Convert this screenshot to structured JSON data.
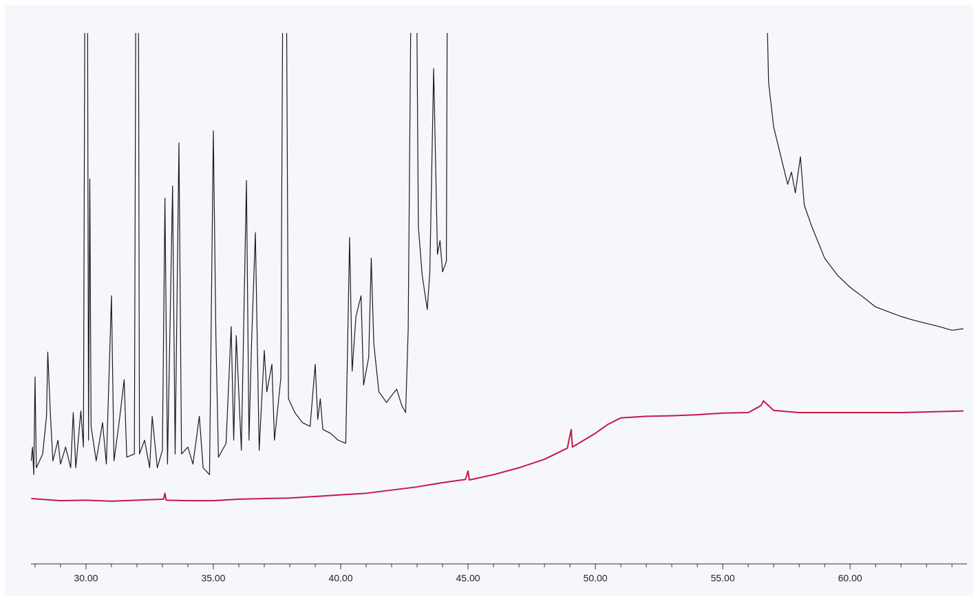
{
  "chart_data": {
    "type": "line",
    "xlim": [
      27.84,
      64.59
    ],
    "ylim": [
      0,
      100
    ],
    "xticks": [
      {
        "value": 30,
        "label": "30.00"
      },
      {
        "value": 35,
        "label": "35.00"
      },
      {
        "value": 40,
        "label": "40.00"
      },
      {
        "value": 45,
        "label": "45.00"
      },
      {
        "value": 50,
        "label": "50.00"
      },
      {
        "value": 55,
        "label": "55.00"
      },
      {
        "value": 60,
        "label": "60.00"
      }
    ],
    "xminorticks": [
      28,
      29,
      31,
      32,
      33,
      34,
      36,
      37,
      38,
      39,
      41,
      42,
      43,
      44,
      46,
      47,
      48,
      49,
      51,
      52,
      53,
      54,
      56,
      57,
      58,
      59,
      61,
      62,
      63,
      64
    ],
    "series": [
      {
        "color": "#1a1a1a",
        "x": [
          27.85,
          27.9,
          27.95,
          28.0,
          28.05,
          28.3,
          28.45,
          28.5,
          28.6,
          28.7,
          28.9,
          29.0,
          29.2,
          29.4,
          29.5,
          29.6,
          29.8,
          29.9,
          29.97,
          30.05,
          30.1,
          30.15,
          30.2,
          30.4,
          30.65,
          30.8,
          31.0,
          31.1,
          31.3,
          31.5,
          31.6,
          31.9,
          31.97,
          32.05,
          32.1,
          32.3,
          32.5,
          32.6,
          32.8,
          33.0,
          33.1,
          33.2,
          33.4,
          33.5,
          33.65,
          33.75,
          34.0,
          34.2,
          34.45,
          34.6,
          34.85,
          35.0,
          35.1,
          35.2,
          35.5,
          35.7,
          35.8,
          35.9,
          36.1,
          36.3,
          36.4,
          36.5,
          36.65,
          36.8,
          37.0,
          37.1,
          37.3,
          37.4,
          37.65,
          37.75,
          37.85,
          37.95,
          38.2,
          38.5,
          38.8,
          39.0,
          39.1,
          39.2,
          39.3,
          39.6,
          39.9,
          40.2,
          40.35,
          40.45,
          40.6,
          40.8,
          40.9,
          41.1,
          41.2,
          41.3,
          41.5,
          41.8,
          42.0,
          42.2,
          42.4,
          42.55,
          42.65,
          42.8,
          42.95,
          43.05,
          43.2,
          43.4,
          43.5,
          43.65,
          43.8,
          43.9,
          44.0,
          44.15,
          44.2,
          null,
          56.62,
          56.8,
          57.0,
          57.3,
          57.55,
          57.7,
          57.85,
          58.05,
          58.2,
          58.5,
          59.0,
          59.5,
          60.0,
          60.5,
          61.0,
          61.5,
          62.0,
          62.5,
          63.0,
          63.5,
          64.0,
          64.45
        ],
        "values": [
          19.4,
          22.0,
          16.8,
          35.2,
          18.1,
          20.7,
          27.8,
          39.9,
          28.5,
          19.4,
          23.3,
          18.8,
          22.0,
          18.1,
          28.5,
          18.1,
          28.8,
          22.0,
          130,
          130,
          23.3,
          72.5,
          25.9,
          19.4,
          26.6,
          18.8,
          50.5,
          19.4,
          26.6,
          34.7,
          20.1,
          20.7,
          130,
          130,
          20.7,
          23.3,
          18.1,
          27.8,
          18.1,
          21.4,
          68.9,
          18.8,
          71.2,
          20.7,
          79.3,
          20.7,
          22.0,
          18.8,
          27.8,
          18.1,
          16.8,
          81.6,
          43.0,
          20.1,
          22.7,
          44.7,
          23.3,
          43.0,
          21.4,
          72.2,
          23.3,
          41.5,
          62.4,
          21.4,
          40.2,
          32.4,
          37.6,
          23.3,
          35.0,
          130,
          130,
          31.1,
          28.5,
          26.6,
          25.9,
          37.6,
          27.2,
          31.1,
          25.3,
          24.6,
          23.3,
          22.7,
          61.5,
          36.3,
          46.6,
          50.5,
          33.7,
          38.9,
          57.6,
          41.5,
          32.4,
          30.4,
          31.7,
          32.9,
          29.8,
          28.5,
          44.0,
          130,
          130,
          63.5,
          54.4,
          47.9,
          55.0,
          93.3,
          58.3,
          60.9,
          55.0,
          57.0,
          130,
          null,
          130,
          90.7,
          82.3,
          76.4,
          71.5,
          73.8,
          69.9,
          76.7,
          67.6,
          63.5,
          57.6,
          54.4,
          52.1,
          50.3,
          48.4,
          47.5,
          46.6,
          45.9,
          45.3,
          44.7,
          44.0,
          44.3
        ]
      },
      {
        "color": "#c8164a",
        "x": [
          27.85,
          29,
          30,
          31,
          32,
          33.05,
          33.1,
          33.15,
          34,
          35,
          36,
          37,
          38,
          39,
          40,
          41,
          42,
          43,
          44,
          44.9,
          45.0,
          45.05,
          46,
          47,
          48,
          48.9,
          49.05,
          49.1,
          50,
          50.5,
          51,
          52,
          53,
          54,
          55,
          56,
          56.5,
          56.6,
          57,
          58,
          59,
          60,
          62,
          64.45
        ],
        "values": [
          12.3,
          11.9,
          12.0,
          11.8,
          12.0,
          12.2,
          13.3,
          12.0,
          11.9,
          11.9,
          12.2,
          12.3,
          12.4,
          12.7,
          13.0,
          13.3,
          13.9,
          14.5,
          15.3,
          15.9,
          17.5,
          15.8,
          16.8,
          18.1,
          19.7,
          21.8,
          25.3,
          22.0,
          24.6,
          26.3,
          27.5,
          27.8,
          27.9,
          28.1,
          28.4,
          28.5,
          29.8,
          30.7,
          28.9,
          28.5,
          28.5,
          28.5,
          28.5,
          28.8
        ]
      }
    ]
  }
}
